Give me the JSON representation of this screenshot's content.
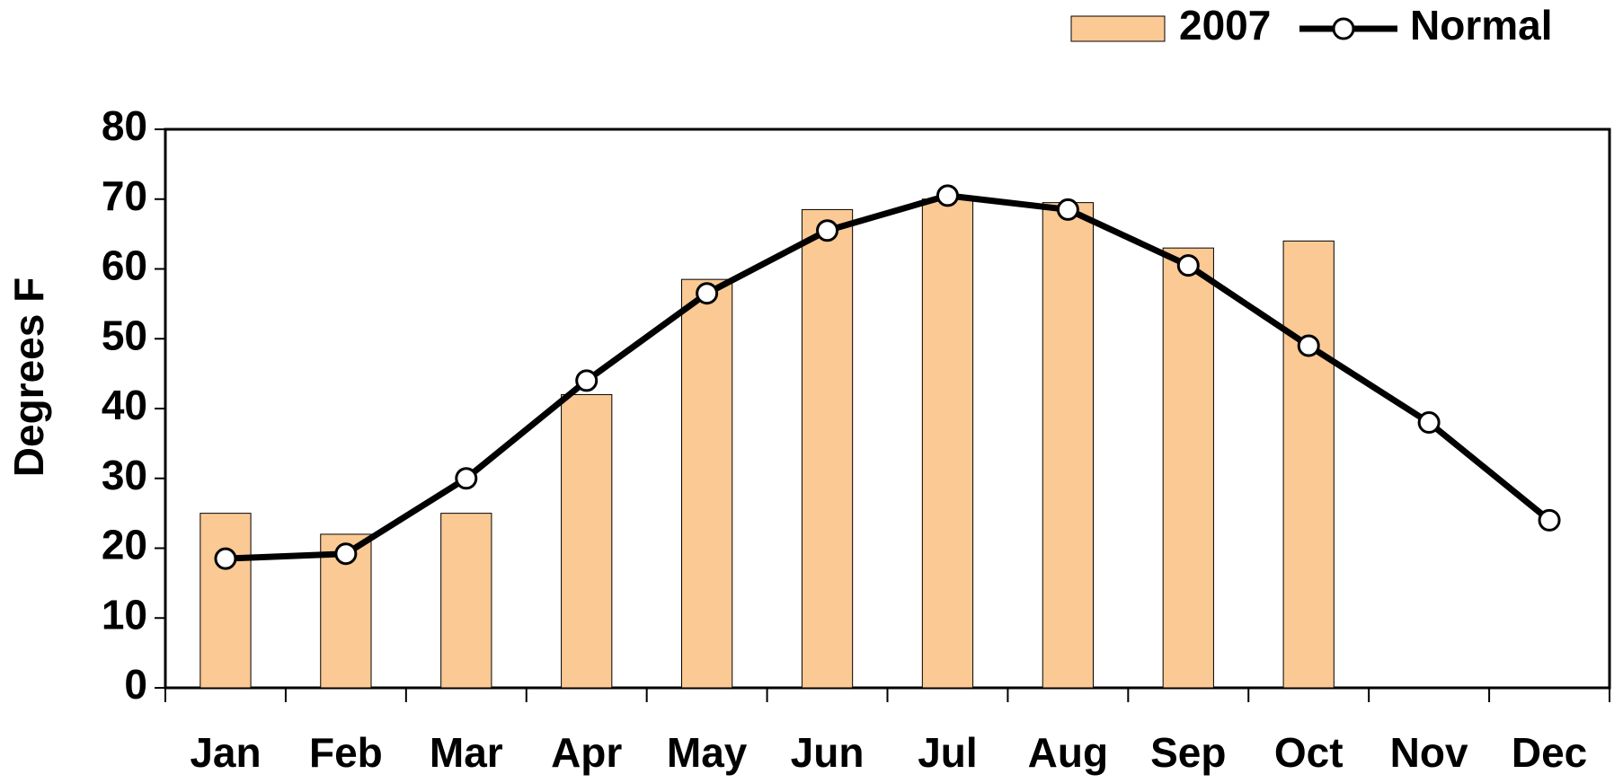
{
  "chart_data": {
    "type": "bar_line",
    "y_label": "Degrees F",
    "categories": [
      "Jan",
      "Feb",
      "Mar",
      "Apr",
      "May",
      "Jun",
      "Jul",
      "Aug",
      "Sep",
      "Oct",
      "Nov",
      "Dec"
    ],
    "series": [
      {
        "name": "2007",
        "type": "bar",
        "color": "#fbc994",
        "values": [
          25,
          22,
          25,
          42,
          58.5,
          68.5,
          70,
          69.5,
          63,
          64,
          null,
          null
        ]
      },
      {
        "name": "Normal",
        "type": "line",
        "color": "#000000",
        "values": [
          18.5,
          19.2,
          30,
          44,
          56.5,
          65.5,
          70.5,
          68.5,
          60.5,
          49,
          38,
          24
        ]
      }
    ],
    "ylim": [
      0,
      80
    ],
    "yticks": [
      0,
      10,
      20,
      30,
      40,
      50,
      60,
      70,
      80
    ],
    "grid": false,
    "legend": "top-right"
  }
}
